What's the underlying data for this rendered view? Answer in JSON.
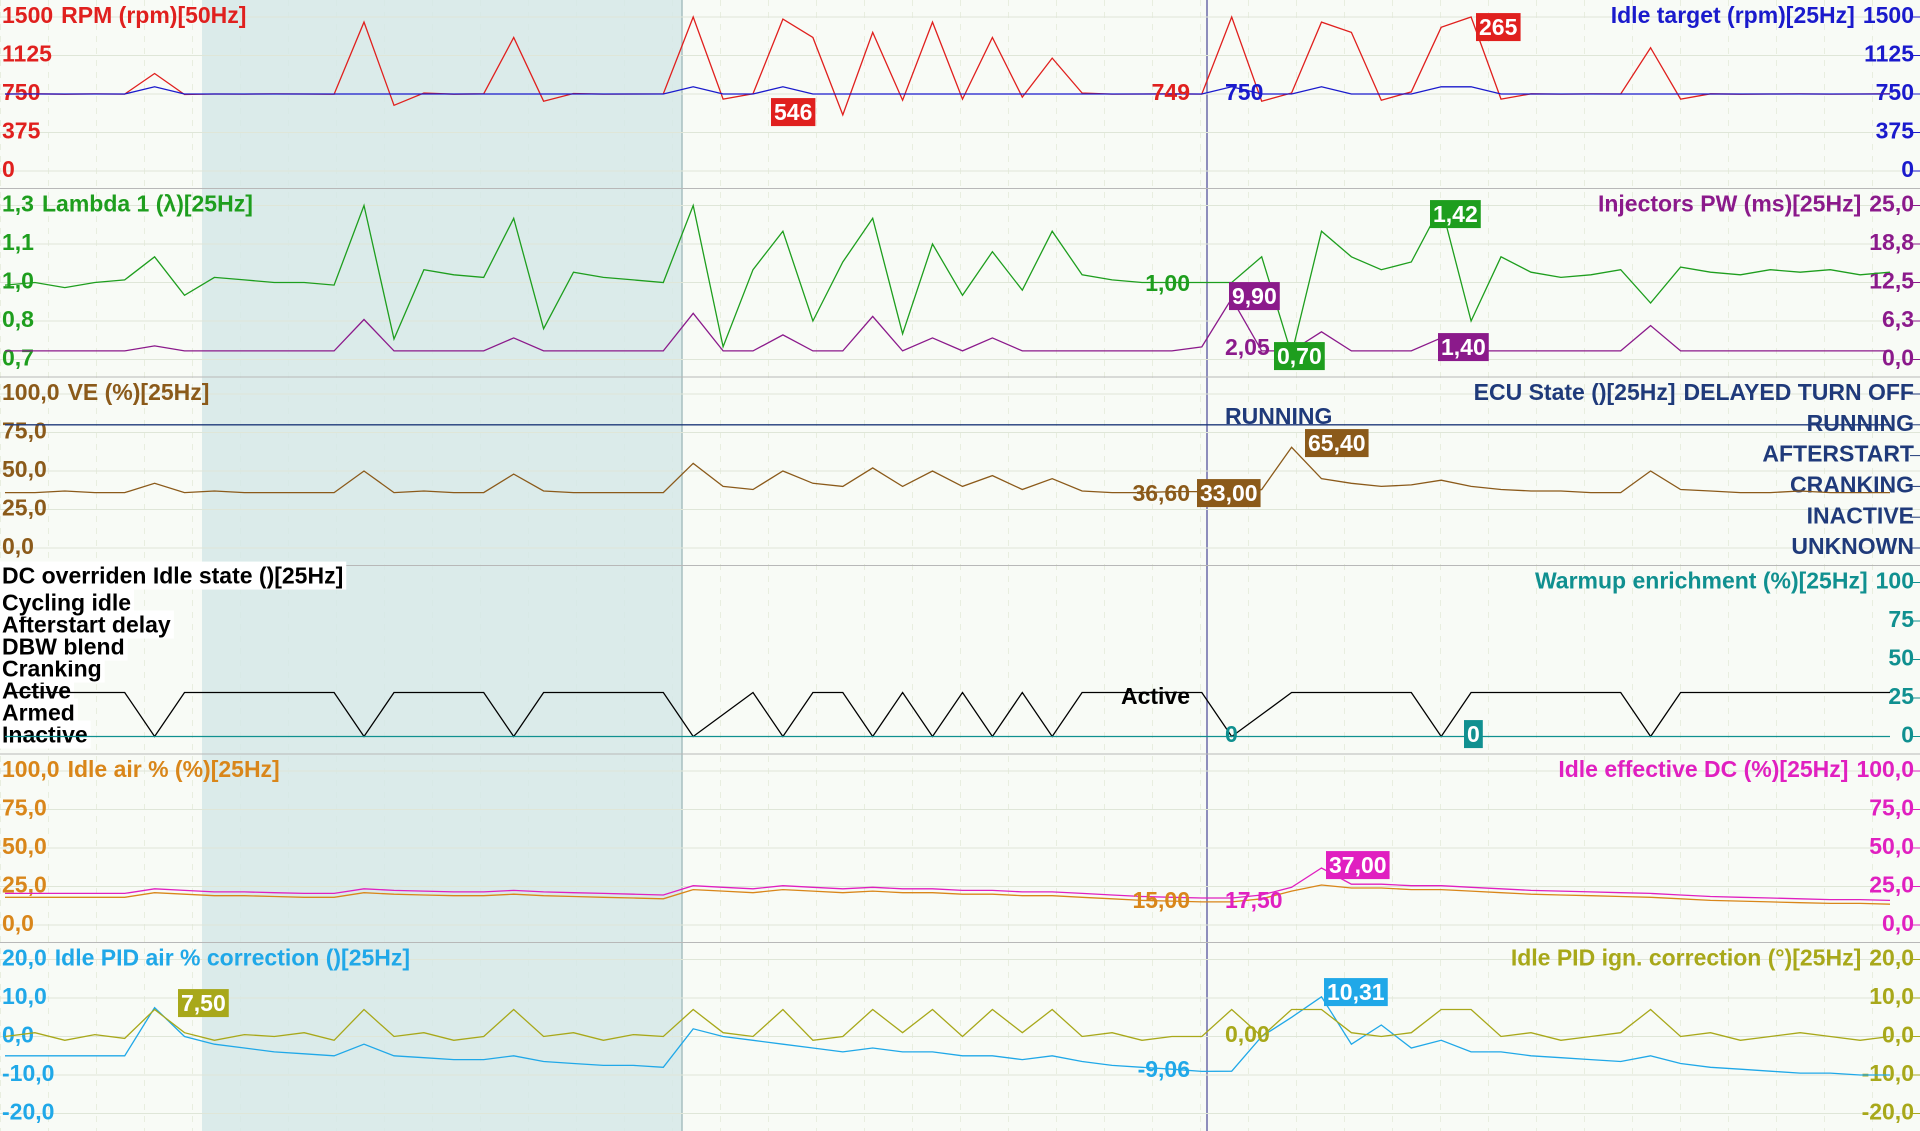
{
  "chart_data": [
    {
      "type": "line",
      "grid": true,
      "ylim": [
        0,
        1500
      ],
      "yticks": [
        0,
        375,
        750,
        1125,
        1500
      ],
      "y2lim": [
        0,
        1500
      ],
      "y2ticks": [
        0,
        375,
        750,
        1125,
        1500
      ],
      "series": [
        {
          "name": "RPM (rpm)[50Hz]",
          "color": "#e0201e",
          "values": [
            750,
            752,
            748,
            751,
            749,
            950,
            745,
            750,
            749,
            751,
            750,
            748,
            1450,
            640,
            760,
            748,
            752,
            1300,
            680,
            755,
            749,
            750,
            751,
            1500,
            700,
            752,
            1480,
            1300,
            546,
            1350,
            690,
            1450,
            700,
            1300,
            720,
            1100,
            760,
            749,
            750,
            752,
            749,
            1500,
            680,
            760,
            1450,
            1350,
            690,
            770,
            1400,
            1500,
            700,
            752,
            749,
            751,
            750,
            1200,
            700,
            752,
            748,
            750,
            751,
            749,
            750,
            752
          ]
        },
        {
          "name": "Idle target (rpm)[25Hz]",
          "color": "#1a1acc",
          "axis": "y2",
          "values": [
            750,
            750,
            750,
            750,
            750,
            820,
            750,
            750,
            750,
            750,
            750,
            750,
            750,
            750,
            750,
            750,
            750,
            750,
            750,
            750,
            750,
            750,
            750,
            820,
            750,
            750,
            820,
            750,
            750,
            750,
            750,
            750,
            750,
            750,
            750,
            750,
            750,
            750,
            750,
            750,
            750,
            820,
            750,
            750,
            820,
            750,
            750,
            750,
            820,
            820,
            750,
            750,
            750,
            750,
            750,
            750,
            750,
            750,
            750,
            750,
            750,
            750,
            750,
            750
          ]
        }
      ],
      "annotations": [
        "749",
        "750",
        "546",
        "265"
      ]
    },
    {
      "type": "line",
      "grid": true,
      "ylim": [
        0.7,
        1.3
      ],
      "yticks": [
        {
          "value": 0.7,
          "label": "0,7"
        },
        {
          "value": 0.85,
          "label": "0,8"
        },
        {
          "value": 1.0,
          "label": "1,0"
        },
        {
          "value": 1.15,
          "label": "1,1"
        },
        {
          "value": 1.3,
          "label": "1,3"
        }
      ],
      "y2lim": [
        0,
        25
      ],
      "y2ticks": [
        {
          "value": 0,
          "label": "0,0"
        },
        {
          "value": 6.25,
          "label": "6,3"
        },
        {
          "value": 12.5,
          "label": "12,5"
        },
        {
          "value": 18.75,
          "label": "18,8"
        },
        {
          "value": 25,
          "label": "25,0"
        }
      ],
      "series": [
        {
          "name": "Lambda 1 (λ)[25Hz]",
          "color": "#1e9e1e",
          "values": [
            0.99,
            1.0,
            0.98,
            1.0,
            1.01,
            1.1,
            0.95,
            1.02,
            1.01,
            1.0,
            1.0,
            0.99,
            1.3,
            0.78,
            1.05,
            1.03,
            1.02,
            1.25,
            0.82,
            1.04,
            1.02,
            1.01,
            1.0,
            1.3,
            0.75,
            1.05,
            1.2,
            0.85,
            1.08,
            1.25,
            0.8,
            1.15,
            0.95,
            1.12,
            0.97,
            1.2,
            1.03,
            1.01,
            1.0,
            1.0,
            1.0,
            1.0,
            1.1,
            0.72,
            1.2,
            1.1,
            1.05,
            1.08,
            1.3,
            0.85,
            1.1,
            1.04,
            1.02,
            1.03,
            1.05,
            0.92,
            1.06,
            1.04,
            1.03,
            1.05,
            1.04,
            1.05,
            1.03,
            1.04
          ]
        },
        {
          "name": "Injectors PW (ms)[25Hz]",
          "color": "#8b1a8b",
          "axis": "y2",
          "values": [
            1.4,
            1.4,
            1.4,
            1.4,
            1.4,
            2.2,
            1.4,
            1.4,
            1.4,
            1.4,
            1.4,
            1.4,
            6.5,
            1.4,
            1.4,
            1.4,
            1.4,
            3.5,
            1.4,
            1.4,
            1.4,
            1.4,
            1.4,
            7.5,
            1.4,
            1.4,
            4.0,
            1.4,
            1.4,
            7.0,
            1.4,
            3.5,
            1.4,
            3.5,
            1.4,
            1.4,
            1.4,
            1.4,
            1.4,
            1.4,
            2.05,
            9.9,
            1.4,
            1.4,
            4.5,
            1.4,
            1.4,
            1.4,
            3.5,
            1.4,
            1.4,
            1.4,
            1.4,
            1.4,
            1.4,
            5.5,
            1.4,
            1.4,
            1.4,
            1.4,
            1.4,
            1.4,
            1.4,
            1.4
          ]
        }
      ],
      "annotations": [
        "1,00",
        "9,90",
        "2,05",
        "0,70",
        "1,42",
        "1,40"
      ]
    },
    {
      "type": "line",
      "grid": true,
      "ylim": [
        0,
        100
      ],
      "yticks": [
        {
          "value": 0,
          "label": "0,0"
        },
        {
          "value": 25,
          "label": "25,0"
        },
        {
          "value": 50,
          "label": "50,0"
        },
        {
          "value": 75,
          "label": "75,0"
        },
        {
          "value": 100,
          "label": "100,0"
        }
      ],
      "y2lim": [
        0,
        5
      ],
      "y2ticks": [
        {
          "value": 0,
          "label": "UNKNOWN"
        },
        {
          "value": 1,
          "label": "INACTIVE"
        },
        {
          "value": 2,
          "label": "CRANKING"
        },
        {
          "value": 3,
          "label": "AFTERSTART"
        },
        {
          "value": 4,
          "label": "RUNNING"
        },
        {
          "value": 5,
          "label": "DELAYED TURN OFF"
        }
      ],
      "series": [
        {
          "name": "VE (%)[25Hz]",
          "color": "#8b5a1a",
          "values": [
            36,
            36,
            37,
            36,
            36,
            42,
            36,
            37,
            36,
            36,
            36,
            36,
            50,
            36,
            37,
            36,
            36,
            48,
            37,
            36,
            36,
            36,
            36,
            55,
            40,
            38,
            50,
            42,
            40,
            52,
            40,
            50,
            40,
            47,
            38,
            45,
            37,
            36,
            36,
            36.6,
            36.6,
            33,
            38,
            65.4,
            45,
            42,
            40,
            41,
            44,
            40,
            38,
            37,
            37,
            36,
            36,
            50,
            38,
            37,
            36,
            36,
            37,
            36,
            36,
            36
          ]
        },
        {
          "name": "ECU State ()[25Hz]",
          "color": "#1f3a7a",
          "axis": "y2",
          "values": [
            4,
            4,
            4,
            4,
            4,
            4,
            4,
            4,
            4,
            4,
            4,
            4,
            4,
            4,
            4,
            4,
            4,
            4,
            4,
            4,
            4,
            4,
            4,
            4,
            4,
            4,
            4,
            4,
            4,
            4,
            4,
            4,
            4,
            4,
            4,
            4,
            4,
            4,
            4,
            4,
            4,
            4,
            4,
            4,
            4,
            4,
            4,
            4,
            4,
            4,
            4,
            4,
            4,
            4,
            4,
            4,
            4,
            4,
            4,
            4,
            4,
            4,
            4,
            4
          ]
        }
      ],
      "annotations": [
        "36,60",
        "33,00",
        "65,40",
        "RUNNING"
      ]
    },
    {
      "type": "line",
      "grid": false,
      "ylim": [
        0,
        7
      ],
      "yticks": [
        {
          "value": 0,
          "label": "Inactive"
        },
        {
          "value": 1,
          "label": "Armed"
        },
        {
          "value": 2,
          "label": "Active"
        },
        {
          "value": 3,
          "label": "Cranking"
        },
        {
          "value": 4,
          "label": "DBW blend"
        },
        {
          "value": 5,
          "label": "Afterstart delay"
        },
        {
          "value": 6,
          "label": "Cycling idle"
        }
      ],
      "y2lim": [
        0,
        100
      ],
      "y2ticks": [
        0,
        25,
        50,
        75,
        100
      ],
      "series": [
        {
          "name": "DC overriden Idle state ()[25Hz]",
          "color": "#000000",
          "values": [
            2,
            2,
            2,
            2,
            2,
            0,
            2,
            2,
            2,
            2,
            2,
            2,
            0,
            2,
            2,
            2,
            2,
            0,
            2,
            2,
            2,
            2,
            2,
            0,
            1,
            2,
            0,
            2,
            2,
            0,
            2,
            0,
            2,
            0,
            2,
            0,
            2,
            2,
            2,
            2,
            2,
            0,
            1,
            2,
            2,
            2,
            2,
            2,
            0,
            2,
            2,
            2,
            2,
            2,
            2,
            0,
            2,
            2,
            2,
            2,
            2,
            2,
            2,
            2
          ]
        },
        {
          "name": "Warmup enrichment (%)[25Hz]",
          "color": "#109090",
          "axis": "y2",
          "values": [
            0,
            0,
            0,
            0,
            0,
            0,
            0,
            0,
            0,
            0,
            0,
            0,
            0,
            0,
            0,
            0,
            0,
            0,
            0,
            0,
            0,
            0,
            0,
            0,
            0,
            0,
            0,
            0,
            0,
            0,
            0,
            0,
            0,
            0,
            0,
            0,
            0,
            0,
            0,
            0,
            0,
            0,
            0,
            0,
            0,
            0,
            0,
            0,
            0,
            0,
            0,
            0,
            0,
            0,
            0,
            0,
            0,
            0,
            0,
            0,
            0,
            0,
            0,
            0
          ]
        }
      ],
      "annotations": [
        "Active",
        "0",
        "0"
      ]
    },
    {
      "type": "line",
      "grid": true,
      "ylim": [
        0,
        100
      ],
      "yticks": [
        {
          "value": 0,
          "label": "0,0"
        },
        {
          "value": 25,
          "label": "25,0"
        },
        {
          "value": 50,
          "label": "50,0"
        },
        {
          "value": 75,
          "label": "75,0"
        },
        {
          "value": 100,
          "label": "100,0"
        }
      ],
      "y2lim": [
        0,
        100
      ],
      "y2ticks": [
        {
          "value": 0,
          "label": "0,0"
        },
        {
          "value": 25,
          "label": "25,0"
        },
        {
          "value": 50,
          "label": "50,0"
        },
        {
          "value": 75,
          "label": "75,0"
        },
        {
          "value": 100,
          "label": "100,0"
        }
      ],
      "series": [
        {
          "name": "Idle air % (%)[25Hz]",
          "color": "#d9861a",
          "values": [
            18,
            18,
            18,
            18,
            18,
            21,
            20,
            19,
            19,
            18.5,
            18,
            18,
            21,
            20,
            19.5,
            19,
            19,
            20,
            19,
            18.5,
            18,
            17.5,
            17,
            23,
            22,
            21,
            23,
            22,
            21,
            22,
            21,
            21,
            20,
            20,
            19,
            19,
            18,
            17,
            16,
            15.5,
            15,
            15,
            17,
            22,
            26,
            24,
            24,
            23,
            23,
            22,
            21,
            20,
            19.5,
            19,
            18.5,
            18,
            17,
            16,
            15.5,
            15,
            14.5,
            14,
            14,
            13.5
          ]
        },
        {
          "name": "Idle effective DC (%)[25Hz]",
          "color": "#e020c0",
          "axis": "y2",
          "values": [
            20.5,
            20.5,
            20.5,
            20.5,
            20.5,
            23.5,
            22.5,
            21.5,
            21.5,
            21,
            20.5,
            20.5,
            23.5,
            22.5,
            22,
            21.5,
            21.5,
            22.5,
            21.5,
            21,
            20.5,
            20,
            19.5,
            25.5,
            24.5,
            23.5,
            25.5,
            24.5,
            23.5,
            24.5,
            23.5,
            23.5,
            22.5,
            22.5,
            21.5,
            21.5,
            20.5,
            19.5,
            18.5,
            18,
            17.5,
            17.5,
            19.5,
            24.5,
            37,
            26.5,
            26.5,
            25.5,
            25.5,
            24.5,
            23.5,
            22.5,
            22,
            21.5,
            21,
            20.5,
            19.5,
            18.5,
            18,
            17.5,
            17,
            16.5,
            16.5,
            16
          ]
        }
      ],
      "annotations": [
        "15,00",
        "17,50",
        "37,00"
      ]
    },
    {
      "type": "line",
      "grid": true,
      "ylim": [
        -20,
        20
      ],
      "yticks": [
        {
          "value": -20,
          "label": "-20,0"
        },
        {
          "value": -10,
          "label": "-10,0"
        },
        {
          "value": 0,
          "label": "0,0"
        },
        {
          "value": 10,
          "label": "10,0"
        },
        {
          "value": 20,
          "label": "20,0"
        }
      ],
      "y2lim": [
        -20,
        20
      ],
      "y2ticks": [
        {
          "value": -20,
          "label": "-20,0"
        },
        {
          "value": -10,
          "label": "-10,0"
        },
        {
          "value": 0,
          "label": "0,0"
        },
        {
          "value": 10,
          "label": "10,0"
        },
        {
          "value": 20,
          "label": "20,0"
        }
      ],
      "series": [
        {
          "name": "Idle PID air % correction ()[25Hz]",
          "color": "#20a8e8",
          "values": [
            -5,
            -5,
            -5,
            -5,
            -5,
            7.5,
            0,
            -2,
            -3,
            -4,
            -4.5,
            -5,
            -2,
            -5,
            -5.5,
            -6,
            -6,
            -5,
            -6.5,
            -7,
            -7.5,
            -7.5,
            -8,
            2,
            0,
            -1,
            -2,
            -3,
            -4,
            -3,
            -4,
            -4,
            -5,
            -5,
            -6,
            -5,
            -6.5,
            -7.5,
            -8,
            -8.5,
            -9.06,
            -9,
            0,
            5,
            10.31,
            -2,
            3,
            -3,
            -1,
            -4,
            -4,
            -5,
            -5.5,
            -6,
            -6.5,
            -5,
            -7,
            -8,
            -8.5,
            -9,
            -9.5,
            -9.5,
            -10,
            -10
          ]
        },
        {
          "name": "Idle PID ign. correction (°)[25Hz]",
          "color": "#a8a81a",
          "axis": "y2",
          "values": [
            0,
            1,
            -1,
            0.5,
            -0.5,
            7,
            1,
            -1,
            0.5,
            0,
            1,
            -1,
            7,
            0,
            1,
            -1,
            0,
            7,
            0,
            1,
            -1,
            0.5,
            0,
            7,
            1,
            0,
            7,
            -1,
            0,
            7,
            1,
            7,
            0,
            7,
            1,
            7,
            0,
            1,
            -1,
            0,
            0,
            7,
            0,
            7,
            7,
            1,
            0,
            1,
            7,
            7,
            0,
            1,
            -1,
            0,
            1,
            7,
            0,
            1,
            -1,
            0,
            1,
            0,
            -1,
            0
          ]
        }
      ],
      "annotations": [
        "-9,06",
        "0,00",
        "7,50",
        "10,31"
      ]
    }
  ]
}
